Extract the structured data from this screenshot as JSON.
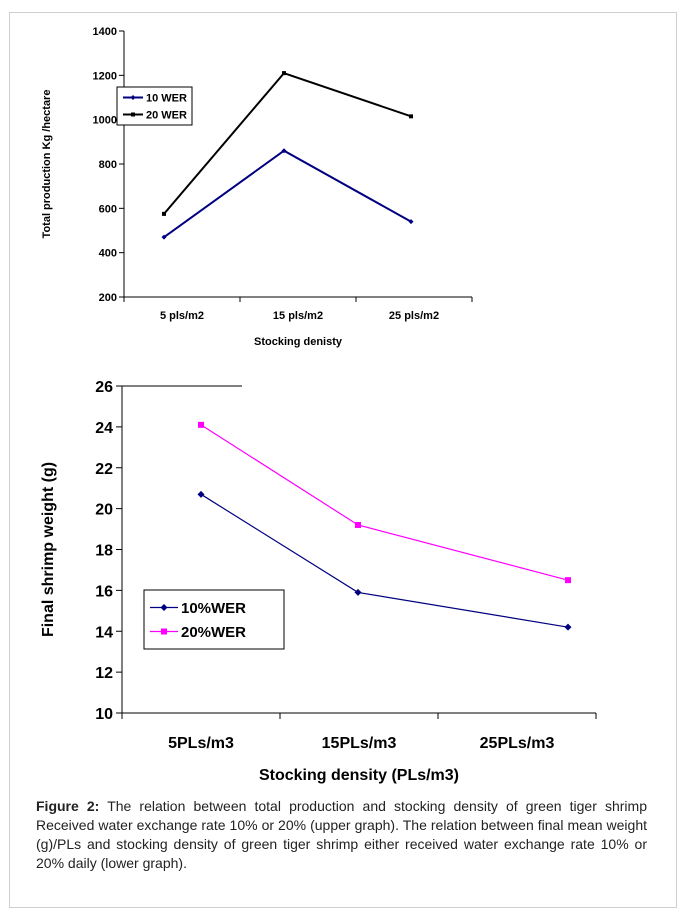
{
  "caption": {
    "label": "Figure 2:",
    "text": "The relation between total production and stocking density of green tiger shrimp Received water exchange rate 10% or 20% (upper graph). The relation between final mean weight (g)/PLs and stocking density of green tiger shrimp either received water exchange rate 10% or 20% daily (lower graph)."
  },
  "chart_data": [
    {
      "type": "line",
      "title": "",
      "xlabel": "Stocking denisty",
      "ylabel": "Total production Kg /hectare",
      "categories": [
        "5 pls/m2",
        "15 pls/m2",
        "25 pls/m2"
      ],
      "ylim": [
        200,
        1400
      ],
      "yticks": [
        200,
        400,
        600,
        800,
        1000,
        1200,
        1400
      ],
      "grid": false,
      "legend": "top-left",
      "series": [
        {
          "name": "10 WER",
          "values": [
            470,
            860,
            540
          ],
          "color": "#000080",
          "marker": "diamond"
        },
        {
          "name": "20 WER",
          "values": [
            575,
            1210,
            1015
          ],
          "color": "#000000",
          "marker": "square"
        }
      ]
    },
    {
      "type": "line",
      "title": "",
      "xlabel": "Stocking density (PLs/m3)",
      "ylabel": "Final shrimp weight (g)",
      "categories": [
        "5PLs/m3",
        "15PLs/m3",
        "25PLs/m3"
      ],
      "ylim": [
        10,
        26
      ],
      "yticks": [
        10,
        12,
        14,
        16,
        18,
        20,
        22,
        24,
        26
      ],
      "grid": false,
      "legend": "middle-left",
      "series": [
        {
          "name": "10%WER",
          "values": [
            20.7,
            15.9,
            14.2
          ],
          "color": "#000080",
          "marker": "diamond"
        },
        {
          "name": "20%WER",
          "values": [
            24.1,
            19.2,
            16.5
          ],
          "color": "#FF00FF",
          "marker": "square"
        }
      ]
    }
  ]
}
